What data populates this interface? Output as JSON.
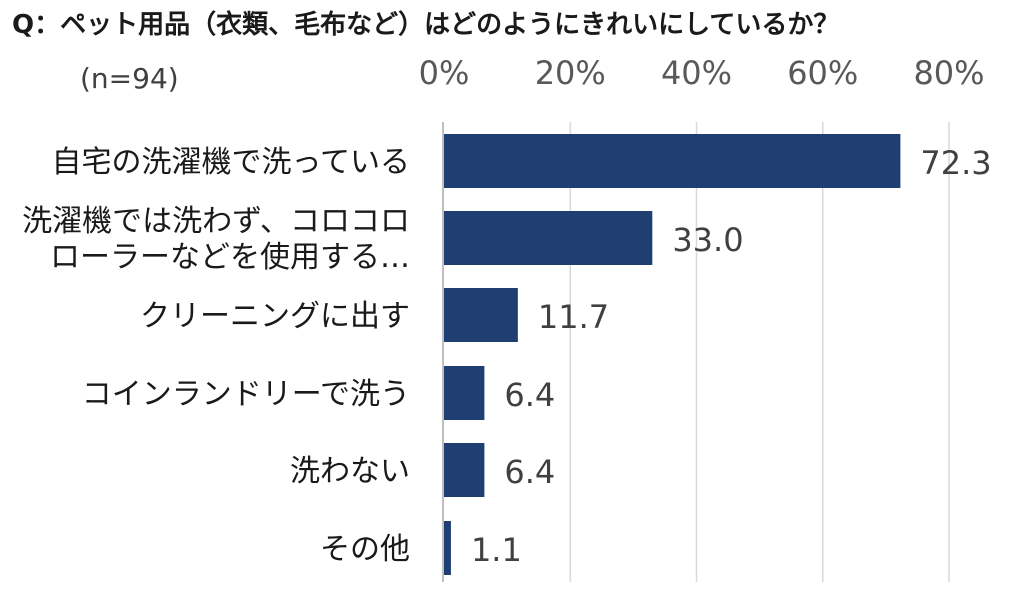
{
  "chart_data": {
    "type": "bar",
    "orientation": "horizontal",
    "title": "Q：ペット用品（衣類、毛布など）はどのようにきれいにしているか？",
    "subtitle": "(n=94)",
    "categories": [
      [
        "自宅の洗濯機で洗っている"
      ],
      [
        "洗濯機では洗わず、コロコロ",
        "ローラーなどを使用する…"
      ],
      [
        "クリーニングに出す"
      ],
      [
        "コインランドリーで洗う"
      ],
      [
        "洗わない"
      ],
      [
        "その他"
      ]
    ],
    "values": [
      72.3,
      33.0,
      11.7,
      6.4,
      6.4,
      1.1
    ],
    "value_labels": [
      "72.3",
      "33.0",
      "11.7",
      "6.4",
      "6.4",
      "1.1"
    ],
    "xlim": [
      0,
      80
    ],
    "ticks": [
      0,
      20,
      40,
      60,
      80
    ],
    "tick_labels": [
      "0%",
      "20%",
      "40%",
      "60%",
      "80%"
    ],
    "tick_position": "top",
    "grid": true,
    "bar_color": "#1f3f73",
    "grid_color": "#d9d9d9",
    "axis_color": "#bfbfbf"
  }
}
